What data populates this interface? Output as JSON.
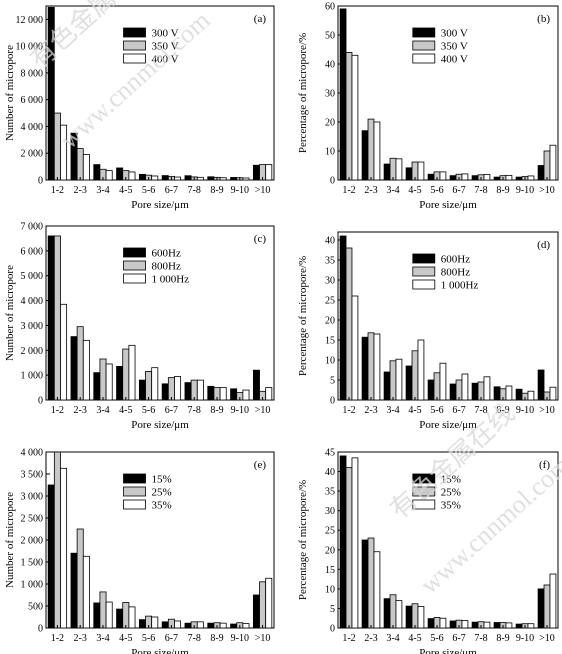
{
  "chart_data": [
    {
      "id": "a",
      "type": "bar",
      "panel_label": "(a)",
      "xlabel": "Pore size/μm",
      "ylabel": "Number of micropore",
      "categories": [
        "1-2",
        "2-3",
        "3-4",
        "4-5",
        "5-6",
        "6-7",
        "7-8",
        "8-9",
        "9-10",
        ">10"
      ],
      "ylim": [
        0,
        13000
      ],
      "yticks": [
        0,
        2000,
        4000,
        6000,
        8000,
        10000,
        12000
      ],
      "ytick_labels": [
        "0",
        "2 000",
        "4 000",
        "6 000",
        "8 000",
        "10 000",
        "12 000"
      ],
      "legend_position": "top-right",
      "series": [
        {
          "name": "300 V",
          "fill": "#000000",
          "values": [
            12900,
            3500,
            1150,
            900,
            420,
            330,
            320,
            240,
            190,
            1100
          ]
        },
        {
          "name": "350 V",
          "fill": "#c8c8c8",
          "values": [
            5000,
            2350,
            800,
            700,
            360,
            270,
            230,
            200,
            170,
            1150
          ]
        },
        {
          "name": "400 V",
          "fill": "#ffffff",
          "values": [
            4100,
            1900,
            700,
            600,
            300,
            220,
            200,
            170,
            150,
            1150
          ]
        }
      ]
    },
    {
      "id": "b",
      "type": "bar",
      "panel_label": "(b)",
      "xlabel": "Pore size/μm",
      "ylabel": "Percentage of micropore/%",
      "categories": [
        "1-2",
        "2-3",
        "3-4",
        "4-5",
        "5-6",
        "6-7",
        "7-8",
        "8-9",
        "9-10",
        ">10"
      ],
      "ylim": [
        0,
        60
      ],
      "yticks": [
        0,
        10,
        20,
        30,
        40,
        50,
        60
      ],
      "ytick_labels": [
        "0",
        "10",
        "20",
        "30",
        "40",
        "50",
        "60"
      ],
      "legend_position": "top-right",
      "series": [
        {
          "name": "300 V",
          "fill": "#000000",
          "values": [
            59,
            17,
            5.5,
            4.2,
            2,
            1.5,
            1.5,
            1,
            1,
            5
          ]
        },
        {
          "name": "350 V",
          "fill": "#c8c8c8",
          "values": [
            44,
            21,
            7.5,
            6.2,
            2.8,
            2,
            1.8,
            1.5,
            1.2,
            10
          ]
        },
        {
          "name": "400 V",
          "fill": "#ffffff",
          "values": [
            43,
            20,
            7.3,
            6.2,
            2.8,
            2.1,
            1.9,
            1.6,
            1.4,
            12
          ]
        }
      ]
    },
    {
      "id": "c",
      "type": "bar",
      "panel_label": "(c)",
      "xlabel": "Pore size/μm",
      "ylabel": "Number of micropore",
      "categories": [
        "1-2",
        "2-3",
        "3-4",
        "4-5",
        "5-6",
        "6-7",
        "7-8",
        "8-9",
        "9-10",
        ">10"
      ],
      "ylim": [
        0,
        7000
      ],
      "yticks": [
        0,
        1000,
        2000,
        3000,
        4000,
        5000,
        6000,
        7000
      ],
      "ytick_labels": [
        "0",
        "1 000",
        "2 000",
        "3 000",
        "4 000",
        "5 000",
        "6 000",
        "7 000"
      ],
      "legend_position": "top-right",
      "series": [
        {
          "name": "600Hz",
          "fill": "#000000",
          "values": [
            6600,
            2550,
            1100,
            1350,
            800,
            650,
            700,
            550,
            450,
            1200
          ]
        },
        {
          "name": "800Hz",
          "fill": "#c8c8c8",
          "values": [
            6600,
            2950,
            1650,
            2050,
            1150,
            900,
            800,
            500,
            300,
            350
          ]
        },
        {
          "name": "1 000Hz",
          "fill": "#ffffff",
          "values": [
            3850,
            2400,
            1450,
            2200,
            1300,
            950,
            800,
            500,
            400,
            500
          ]
        }
      ]
    },
    {
      "id": "d",
      "type": "bar",
      "panel_label": "(d)",
      "xlabel": "Pore size/μm",
      "ylabel": "Percentage of micropore/%",
      "categories": [
        "1-2",
        "2-3",
        "3-4",
        "4-5",
        "5-6",
        "6-7",
        "7-8",
        "8-9",
        "9-10",
        ">10"
      ],
      "ylim": [
        0,
        42
      ],
      "yticks": [
        0,
        5,
        10,
        15,
        20,
        25,
        30,
        35,
        40
      ],
      "ytick_labels": [
        "0",
        "5",
        "10",
        "15",
        "20",
        "25",
        "30",
        "35",
        "40"
      ],
      "legend_position": "top-right",
      "series": [
        {
          "name": "600Hz",
          "fill": "#000000",
          "values": [
            41,
            15.7,
            7,
            8.5,
            5,
            4,
            4.2,
            3.3,
            2.7,
            7.5
          ]
        },
        {
          "name": "800Hz",
          "fill": "#c8c8c8",
          "values": [
            38,
            16.8,
            9.8,
            12.3,
            6.8,
            5,
            4.5,
            2.8,
            1.7,
            2
          ]
        },
        {
          "name": "1 000Hz",
          "fill": "#ffffff",
          "values": [
            26,
            16.5,
            10.2,
            15,
            9.2,
            6.5,
            5.8,
            3.5,
            2.2,
            3.2
          ]
        }
      ]
    },
    {
      "id": "e",
      "type": "bar",
      "panel_label": "(e)",
      "xlabel": "Pore size/μm",
      "ylabel": "Number of micropore",
      "categories": [
        "1-2",
        "2-3",
        "3-4",
        "4-5",
        "5-6",
        "6-7",
        "7-8",
        "8-9",
        "9-10",
        ">10"
      ],
      "ylim": [
        0,
        4000
      ],
      "yticks": [
        0,
        500,
        1000,
        1500,
        2000,
        2500,
        3000,
        3500,
        4000
      ],
      "ytick_labels": [
        "0",
        "500",
        "1 000",
        "1 500",
        "2 000",
        "2 500",
        "3 000",
        "3 500",
        "4 000"
      ],
      "legend_position": "top-right",
      "series": [
        {
          "name": "15%",
          "fill": "#000000",
          "values": [
            3250,
            1700,
            570,
            430,
            190,
            140,
            110,
            110,
            90,
            750
          ]
        },
        {
          "name": "25%",
          "fill": "#c8c8c8",
          "values": [
            4000,
            2250,
            820,
            580,
            270,
            200,
            140,
            120,
            120,
            1050
          ]
        },
        {
          "name": "35%",
          "fill": "#ffffff",
          "values": [
            3630,
            1630,
            590,
            480,
            250,
            160,
            140,
            110,
            100,
            1130
          ]
        }
      ]
    },
    {
      "id": "f",
      "type": "bar",
      "panel_label": "(f)",
      "xlabel": "Pore size/μm",
      "ylabel": "Percentage of micropore/%",
      "categories": [
        "1-2",
        "2-3",
        "3-4",
        "4-5",
        "5-6",
        "6-7",
        "7-8",
        "8-9",
        "9-10",
        ">10"
      ],
      "ylim": [
        0,
        45
      ],
      "yticks": [
        0,
        5,
        10,
        15,
        20,
        25,
        30,
        35,
        40,
        45
      ],
      "ytick_labels": [
        "0",
        "5",
        "10",
        "15",
        "20",
        "25",
        "30",
        "35",
        "40",
        "45"
      ],
      "legend_position": "top-right",
      "series": [
        {
          "name": "15%",
          "fill": "#000000",
          "values": [
            44,
            22.5,
            7.5,
            5.6,
            2.4,
            1.8,
            1.5,
            1.4,
            1,
            10
          ]
        },
        {
          "name": "25%",
          "fill": "#c8c8c8",
          "values": [
            41,
            23,
            8.5,
            6.2,
            2.7,
            2,
            1.6,
            1.4,
            1.1,
            11
          ]
        },
        {
          "name": "35%",
          "fill": "#ffffff",
          "values": [
            43.5,
            19.5,
            7,
            5.5,
            2.5,
            1.9,
            1.5,
            1.3,
            1.1,
            13.8
          ]
        }
      ]
    }
  ],
  "watermark_text": [
    "有色金属在线",
    "www.cnnmol.com"
  ]
}
